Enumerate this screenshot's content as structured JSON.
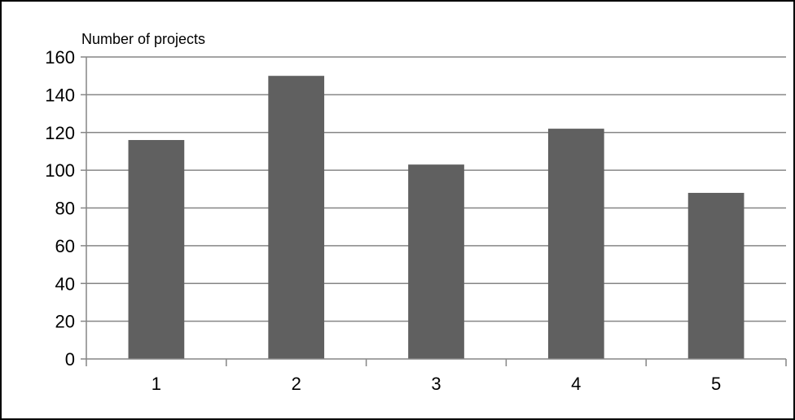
{
  "chart_data": {
    "type": "bar",
    "title": "",
    "xlabel": "",
    "ylabel": "Number of projects",
    "categories": [
      "1",
      "2",
      "3",
      "4",
      "5"
    ],
    "values": [
      116,
      150,
      103,
      122,
      88
    ],
    "ylim": [
      0,
      160
    ],
    "yticks": [
      0,
      20,
      40,
      60,
      80,
      100,
      120,
      140,
      160
    ],
    "grid": true,
    "legend": "none",
    "bar_color": "#606060",
    "gridline_color": "#868686",
    "axis_color": "#868686",
    "frame_color": "#000000"
  }
}
